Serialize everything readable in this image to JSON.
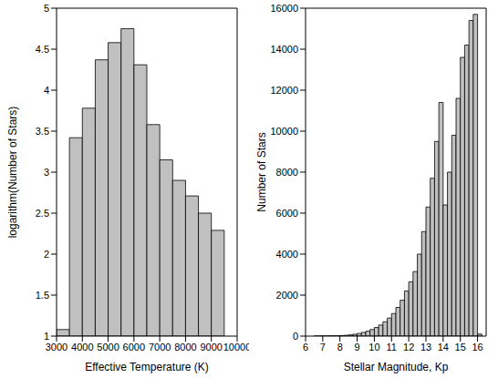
{
  "chart_data": [
    {
      "type": "histogram",
      "xlabel": "Effective Temperature (K)",
      "ylabel": "logarithm(Number of Stars)",
      "bins": [
        3000,
        3500,
        4000,
        4500,
        5000,
        5500,
        6000,
        6500,
        7000,
        7500,
        8000,
        8500,
        9000,
        9500
      ],
      "values": [
        1.08,
        3.42,
        3.78,
        4.37,
        4.58,
        4.75,
        4.31,
        3.58,
        3.15,
        2.9,
        2.71,
        2.5,
        2.29
      ],
      "color": "#c0c0c0",
      "xlim": [
        3000,
        10000
      ],
      "xticks": [
        3000,
        4000,
        5000,
        6000,
        7000,
        8000,
        9000,
        10000
      ],
      "ylim": [
        1,
        5
      ],
      "yticks": [
        1,
        1.5,
        2,
        2.5,
        3,
        3.5,
        4,
        4.5,
        5
      ]
    },
    {
      "type": "histogram",
      "xlabel": "Stellar Magnitude, Kp",
      "ylabel": "Number of Stars",
      "bins": [
        6.5,
        6.75,
        7,
        7.25,
        7.5,
        7.75,
        8,
        8.25,
        8.5,
        8.75,
        9,
        9.25,
        9.5,
        9.75,
        10,
        10.25,
        10.5,
        10.75,
        11,
        11.25,
        11.5,
        11.75,
        12,
        12.25,
        12.5,
        12.75,
        13,
        13.25,
        13.5,
        13.75,
        14,
        14.25,
        14.5,
        14.75,
        15,
        15.25,
        15.5,
        15.75,
        16,
        16.25
      ],
      "values": [
        2,
        3,
        5,
        8,
        12,
        18,
        28,
        40,
        60,
        90,
        130,
        180,
        240,
        320,
        420,
        540,
        700,
        880,
        1100,
        1400,
        1750,
        2200,
        2650,
        3150,
        4000,
        5100,
        6300,
        7700,
        9500,
        11400,
        6400,
        8000,
        9800,
        11600,
        13600,
        14200,
        15400,
        15700,
        100
      ],
      "color": "#c0c0c0",
      "xlim": [
        6,
        16.5
      ],
      "xticks": [
        6,
        7,
        8,
        9,
        10,
        11,
        12,
        13,
        14,
        15,
        16
      ],
      "ylim": [
        0,
        16000
      ],
      "yticks": [
        0,
        2000,
        4000,
        6000,
        8000,
        10000,
        12000,
        14000,
        16000
      ]
    }
  ]
}
